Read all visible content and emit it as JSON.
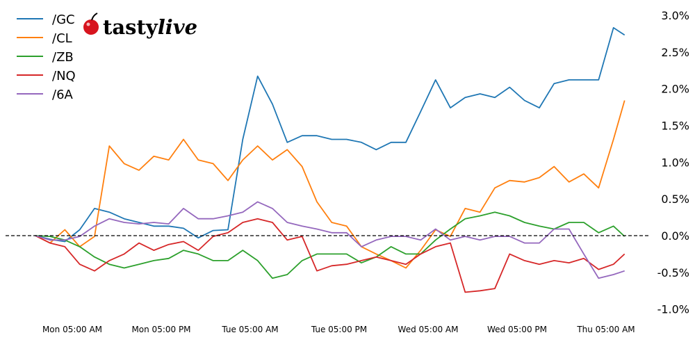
{
  "logo": {
    "text_plain": "tasty",
    "text_italic": "live"
  },
  "chart_data": {
    "type": "line",
    "title": "",
    "xlabel": "",
    "ylabel": "",
    "y_unit": "%",
    "ylim": [
      -1.05,
      3.1
    ],
    "yticks": [
      -1.0,
      -0.5,
      0.0,
      0.5,
      1.0,
      1.5,
      2.0,
      2.5,
      3.0
    ],
    "ytick_labels": [
      "-1.0%",
      "-0.5%",
      "0.0%",
      "0.5%",
      "1.0%",
      "1.5%",
      "2.0%",
      "2.5%",
      "3.0%"
    ],
    "xticks": [
      {
        "time": "Mon 05:00",
        "label": "Mon 05:00 AM"
      },
      {
        "time": "Mon 17:00",
        "label": "Mon 05:00 PM"
      },
      {
        "time": "Tue 05:00",
        "label": "Tue 05:00 AM"
      },
      {
        "time": "Tue 17:00",
        "label": "Tue 05:00 PM"
      },
      {
        "time": "Wed 05:00",
        "label": "Wed 05:00 AM"
      },
      {
        "time": "Wed 17:00",
        "label": "Wed 05:00 PM"
      },
      {
        "time": "Thu 05:00",
        "label": "Thu 05:00 AM"
      }
    ],
    "reference_line": {
      "value": 0.0,
      "style": "dashed",
      "color": "#000000"
    },
    "grid": false,
    "legend_placement": "top-left",
    "x": [
      "Mon 00:00",
      "Mon 02:00",
      "Mon 04:00",
      "Mon 06:00",
      "Mon 08:00",
      "Mon 10:00",
      "Mon 12:00",
      "Mon 14:00",
      "Mon 16:00",
      "Mon 18:00",
      "Mon 20:00",
      "Mon 22:00",
      "Tue 00:00",
      "Tue 02:00",
      "Tue 04:00",
      "Tue 06:00",
      "Tue 08:00",
      "Tue 10:00",
      "Tue 12:00",
      "Tue 14:00",
      "Tue 16:00",
      "Tue 18:00",
      "Tue 20:00",
      "Tue 22:00",
      "Wed 00:00",
      "Wed 02:00",
      "Wed 04:00",
      "Wed 06:00",
      "Wed 08:00",
      "Wed 10:00",
      "Wed 12:00",
      "Wed 14:00",
      "Wed 16:00",
      "Wed 18:00",
      "Wed 20:00",
      "Wed 22:00",
      "Thu 00:00",
      "Thu 02:00",
      "Thu 04:00",
      "Thu 06:00",
      "Thu 07:30"
    ],
    "series": [
      {
        "name": "/GC",
        "color": "#1f77b4",
        "values": [
          0,
          -0.05,
          -0.08,
          0.08,
          0.37,
          0.32,
          0.23,
          0.18,
          0.13,
          0.13,
          0.1,
          -0.03,
          0.07,
          0.08,
          1.31,
          2.17,
          1.79,
          1.27,
          1.36,
          1.36,
          1.31,
          1.31,
          1.27,
          1.17,
          1.27,
          1.27,
          1.69,
          2.12,
          1.74,
          1.88,
          1.93,
          1.88,
          2.02,
          1.84,
          1.74,
          2.07,
          2.12,
          2.12,
          2.12,
          2.83,
          2.73
        ]
      },
      {
        "name": "/CL",
        "color": "#ff7f0e",
        "values": [
          0,
          -0.1,
          0.08,
          -0.15,
          -0.01,
          1.22,
          0.98,
          0.89,
          1.08,
          1.03,
          1.31,
          1.03,
          0.98,
          0.75,
          1.03,
          1.22,
          1.03,
          1.17,
          0.94,
          0.46,
          0.18,
          0.13,
          -0.15,
          -0.25,
          -0.34,
          -0.44,
          -0.2,
          0.08,
          -0.01,
          0.37,
          0.32,
          0.65,
          0.75,
          0.73,
          0.79,
          0.94,
          0.73,
          0.84,
          0.65,
          1.31,
          1.84
        ]
      },
      {
        "name": "/ZB",
        "color": "#2ca02c",
        "values": [
          0,
          -0.01,
          -0.06,
          -0.15,
          -0.29,
          -0.39,
          -0.44,
          -0.39,
          -0.34,
          -0.31,
          -0.2,
          -0.25,
          -0.34,
          -0.34,
          -0.2,
          -0.34,
          -0.58,
          -0.53,
          -0.34,
          -0.25,
          -0.25,
          -0.25,
          -0.37,
          -0.29,
          -0.15,
          -0.25,
          -0.25,
          -0.06,
          0.09,
          0.23,
          0.27,
          0.32,
          0.27,
          0.18,
          0.13,
          0.09,
          0.18,
          0.18,
          0.04,
          0.13,
          -0.01
        ]
      },
      {
        "name": "/NQ",
        "color": "#d62728",
        "values": [
          0,
          -0.1,
          -0.15,
          -0.39,
          -0.48,
          -0.34,
          -0.25,
          -0.1,
          -0.2,
          -0.12,
          -0.08,
          -0.2,
          -0.01,
          0.04,
          0.18,
          0.23,
          0.18,
          -0.06,
          -0.01,
          -0.48,
          -0.41,
          -0.39,
          -0.34,
          -0.29,
          -0.34,
          -0.39,
          -0.25,
          -0.15,
          -0.1,
          -0.77,
          -0.75,
          -0.72,
          -0.25,
          -0.34,
          -0.39,
          -0.34,
          -0.37,
          -0.31,
          -0.46,
          -0.39,
          -0.25
        ]
      },
      {
        "name": "/6A",
        "color": "#9467bd",
        "values": [
          0,
          -0.06,
          -0.06,
          -0.01,
          0.13,
          0.23,
          0.18,
          0.16,
          0.18,
          0.16,
          0.37,
          0.23,
          0.23,
          0.27,
          0.32,
          0.46,
          0.37,
          0.18,
          0.13,
          0.09,
          0.04,
          0.04,
          -0.15,
          -0.06,
          -0.01,
          -0.01,
          -0.06,
          0.09,
          -0.06,
          -0.01,
          -0.06,
          -0.01,
          -0.01,
          -0.1,
          -0.1,
          0.09,
          0.09,
          -0.25,
          -0.58,
          -0.53,
          -0.48
        ]
      }
    ]
  }
}
